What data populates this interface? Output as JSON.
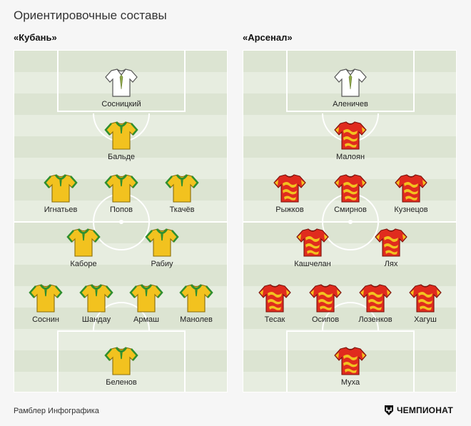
{
  "title": "Ориентировочные составы",
  "footer": {
    "credit": "Рамблер Инфографика",
    "brand": "ЧЕМПИОНАТ"
  },
  "colors": {
    "kuban_shirt": "#f2c21f",
    "kuban_trim": "#2f8f2f",
    "arsenal_shirt": "#e02b1e",
    "arsenal_pattern": "#f2c21f",
    "gk_shirt": "#ffffff"
  },
  "teams": [
    {
      "name": "«Кубань»",
      "players": [
        {
          "name": "Сосницкий",
          "kit": "gk"
        },
        {
          "name": "Бальде",
          "kit": "kuban"
        },
        {
          "name": "Игнатьев",
          "kit": "kuban"
        },
        {
          "name": "Попов",
          "kit": "kuban"
        },
        {
          "name": "Ткачёв",
          "kit": "kuban"
        },
        {
          "name": "Каборе",
          "kit": "kuban"
        },
        {
          "name": "Рабиу",
          "kit": "kuban"
        },
        {
          "name": "Соснин",
          "kit": "kuban"
        },
        {
          "name": "Шандау",
          "kit": "kuban"
        },
        {
          "name": "Армаш",
          "kit": "kuban"
        },
        {
          "name": "Манолев",
          "kit": "kuban"
        },
        {
          "name": "Беленов",
          "kit": "kuban"
        }
      ]
    },
    {
      "name": "«Арсенал»",
      "players": [
        {
          "name": "Аленичев",
          "kit": "gk"
        },
        {
          "name": "Малоян",
          "kit": "arsenal"
        },
        {
          "name": "Рыжков",
          "kit": "arsenal"
        },
        {
          "name": "Смирнов",
          "kit": "arsenal"
        },
        {
          "name": "Кузнецов",
          "kit": "arsenal"
        },
        {
          "name": "Кашчелан",
          "kit": "arsenal"
        },
        {
          "name": "Лях",
          "kit": "arsenal"
        },
        {
          "name": "Тесак",
          "kit": "arsenal"
        },
        {
          "name": "Осипов",
          "kit": "arsenal"
        },
        {
          "name": "Лозенков",
          "kit": "arsenal"
        },
        {
          "name": "Хагуш",
          "kit": "arsenal"
        },
        {
          "name": "Муха",
          "kit": "arsenal"
        }
      ]
    }
  ]
}
